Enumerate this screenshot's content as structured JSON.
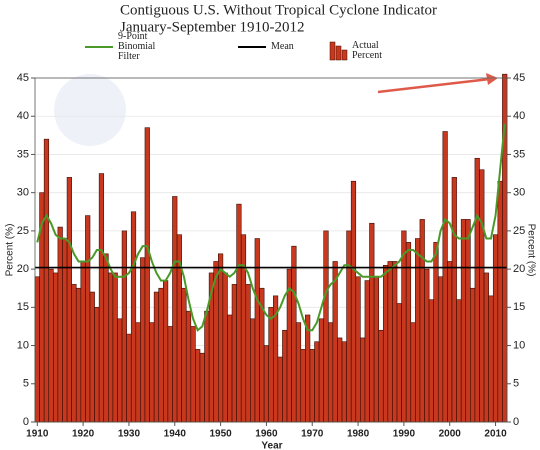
{
  "chart_data": {
    "type": "bar",
    "title": "Contiguous U.S. Without Tropical Cyclone Indicator",
    "subtitle": "January-September 1910-2012",
    "xlabel": "Year",
    "ylabel": "Percent (%)",
    "y2label": "Percent (%)",
    "x": [
      1910,
      1911,
      1912,
      1913,
      1914,
      1915,
      1916,
      1917,
      1918,
      1919,
      1920,
      1921,
      1922,
      1923,
      1924,
      1925,
      1926,
      1927,
      1928,
      1929,
      1930,
      1931,
      1932,
      1933,
      1934,
      1935,
      1936,
      1937,
      1938,
      1939,
      1940,
      1941,
      1942,
      1943,
      1944,
      1945,
      1946,
      1947,
      1948,
      1949,
      1950,
      1951,
      1952,
      1953,
      1954,
      1955,
      1956,
      1957,
      1958,
      1959,
      1960,
      1961,
      1962,
      1963,
      1964,
      1965,
      1966,
      1967,
      1968,
      1969,
      1970,
      1971,
      1972,
      1973,
      1974,
      1975,
      1976,
      1977,
      1978,
      1979,
      1980,
      1981,
      1982,
      1983,
      1984,
      1985,
      1986,
      1987,
      1988,
      1989,
      1990,
      1991,
      1992,
      1993,
      1994,
      1995,
      1996,
      1997,
      1998,
      1999,
      2000,
      2001,
      2002,
      2003,
      2004,
      2005,
      2006,
      2007,
      2008,
      2009,
      2010,
      2011,
      2012
    ],
    "series": [
      {
        "name": "Actual Percent",
        "type": "bar",
        "color": "#c8381e",
        "values": [
          19,
          30,
          37,
          20,
          19.5,
          25.5,
          24,
          32,
          18,
          17.5,
          21,
          27,
          17,
          15,
          32.5,
          22,
          19.5,
          19.5,
          13.5,
          25,
          11.5,
          27.5,
          13,
          21.5,
          38.5,
          13,
          17,
          17.5,
          18.5,
          12.5,
          29.5,
          24.5,
          17.5,
          14.5,
          12.5,
          9.5,
          9,
          14.5,
          19.5,
          21,
          22,
          19.5,
          14,
          18,
          28.5,
          24.5,
          18,
          13.5,
          24,
          17.5,
          10,
          15,
          16.5,
          8.5,
          12,
          20,
          23,
          13,
          9.5,
          14,
          9.5,
          10.5,
          13.5,
          25,
          13,
          21,
          11,
          10.5,
          25,
          31.5,
          19,
          11,
          18.5,
          26,
          19,
          12,
          20.5,
          21,
          21,
          15.5,
          25,
          23.5,
          13,
          24,
          26.5,
          20,
          16,
          23.5,
          19,
          38,
          21,
          32,
          16,
          26.5,
          26.5,
          17.5,
          34.5,
          33,
          19.5,
          16.5,
          24.5,
          31.5,
          45.5
        ]
      },
      {
        "name": "9-Point Binomial Filter",
        "type": "line",
        "color": "#4a9a2a",
        "values": [
          23.5,
          26,
          27,
          26,
          24.5,
          24,
          24,
          23.5,
          22,
          21,
          21,
          21,
          21.5,
          22.5,
          22.5,
          21.5,
          20,
          19,
          19,
          19,
          19.5,
          20.5,
          22,
          23,
          23,
          21,
          19.5,
          18.5,
          18.5,
          19.5,
          21,
          21,
          19,
          16,
          13.5,
          12,
          12.5,
          14.5,
          17,
          19,
          20,
          19.5,
          19,
          19.5,
          20.5,
          20.5,
          19.5,
          17.5,
          16,
          15,
          14,
          13.5,
          14,
          15,
          16.5,
          17.5,
          17,
          15.5,
          13.5,
          12,
          12,
          13,
          15,
          17,
          18,
          18.5,
          19.5,
          20.5,
          20.5,
          20,
          19.5,
          19,
          19,
          19,
          19,
          19,
          19.5,
          20,
          20.5,
          21,
          22,
          22.5,
          22.5,
          22,
          21.5,
          21,
          21,
          22,
          25,
          26.5,
          26,
          24.5,
          24,
          24,
          24,
          25.5,
          27,
          26,
          24,
          24,
          27,
          33,
          39
        ]
      },
      {
        "name": "Mean",
        "type": "hline",
        "color": "#000000",
        "value": 20.2
      }
    ],
    "xlim": [
      1909.5,
      2012.5
    ],
    "xticks": [
      1910,
      1920,
      1930,
      1940,
      1950,
      1960,
      1970,
      1980,
      1990,
      2000,
      2010
    ],
    "ylim": [
      0,
      45
    ],
    "yticks": [
      0,
      5,
      10,
      15,
      20,
      25,
      30,
      35,
      40,
      45
    ],
    "y2lim": [
      0,
      45
    ],
    "y2ticks": [
      0,
      5,
      10,
      15,
      20,
      25,
      30,
      35,
      40,
      45
    ],
    "grid": true
  }
}
